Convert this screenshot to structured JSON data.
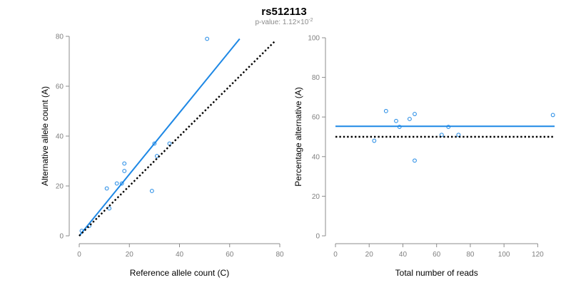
{
  "title": "rs512113",
  "subtitle": {
    "prefix": "p-value: 1.12×10",
    "exponent": "-2"
  },
  "colors": {
    "fit_line": "#1e88e5",
    "points": "#1e88e5",
    "reference_line": "#000000"
  },
  "chart_data": [
    {
      "type": "scatter",
      "xlabel": "Reference allele count (C)",
      "ylabel": "Alternative allele count (A)",
      "xlim": [
        0,
        80
      ],
      "ylim": [
        0,
        80
      ],
      "xticks": [
        0,
        20,
        40,
        60,
        80
      ],
      "yticks": [
        0,
        20,
        40,
        60,
        80
      ],
      "grid": false,
      "series": [
        {
          "kind": "points",
          "points": [
            {
              "x": 1,
              "y": 2
            },
            {
              "x": 4,
              "y": 4
            },
            {
              "x": 11,
              "y": 19
            },
            {
              "x": 12,
              "y": 11
            },
            {
              "x": 15,
              "y": 21
            },
            {
              "x": 17,
              "y": 21
            },
            {
              "x": 18,
              "y": 29
            },
            {
              "x": 18,
              "y": 26
            },
            {
              "x": 29,
              "y": 18
            },
            {
              "x": 30,
              "y": 37
            },
            {
              "x": 31,
              "y": 32
            },
            {
              "x": 36,
              "y": 37
            },
            {
              "x": 51,
              "y": 79
            }
          ]
        },
        {
          "kind": "fit-line",
          "style": "solid",
          "points": [
            {
              "x": 0,
              "y": 0
            },
            {
              "x": 64,
              "y": 79
            }
          ]
        },
        {
          "kind": "reference-line",
          "style": "dotted",
          "points": [
            {
              "x": 0,
              "y": 0
            },
            {
              "x": 78,
              "y": 78
            }
          ]
        }
      ]
    },
    {
      "type": "scatter",
      "xlabel": "Total number of reads",
      "ylabel": "Percentage alternative (A)",
      "xlim": [
        0,
        130
      ],
      "ylim": [
        0,
        100
      ],
      "xticks": [
        0,
        20,
        40,
        60,
        80,
        100,
        120
      ],
      "yticks": [
        0,
        20,
        40,
        60,
        80,
        100
      ],
      "grid": false,
      "series": [
        {
          "kind": "points",
          "points": [
            {
              "x": 23,
              "y": 48
            },
            {
              "x": 30,
              "y": 63
            },
            {
              "x": 36,
              "y": 58
            },
            {
              "x": 38,
              "y": 55
            },
            {
              "x": 44,
              "y": 59
            },
            {
              "x": 47,
              "y": 61.5
            },
            {
              "x": 47,
              "y": 38
            },
            {
              "x": 63,
              "y": 51
            },
            {
              "x": 67,
              "y": 55
            },
            {
              "x": 73,
              "y": 51
            },
            {
              "x": 129,
              "y": 61
            }
          ]
        },
        {
          "kind": "fit-line",
          "style": "solid",
          "points": [
            {
              "x": 0,
              "y": 55.3
            },
            {
              "x": 130,
              "y": 55.3
            }
          ]
        },
        {
          "kind": "reference-line",
          "style": "dotted",
          "points": [
            {
              "x": 0,
              "y": 50
            },
            {
              "x": 130,
              "y": 50
            }
          ]
        }
      ]
    }
  ]
}
